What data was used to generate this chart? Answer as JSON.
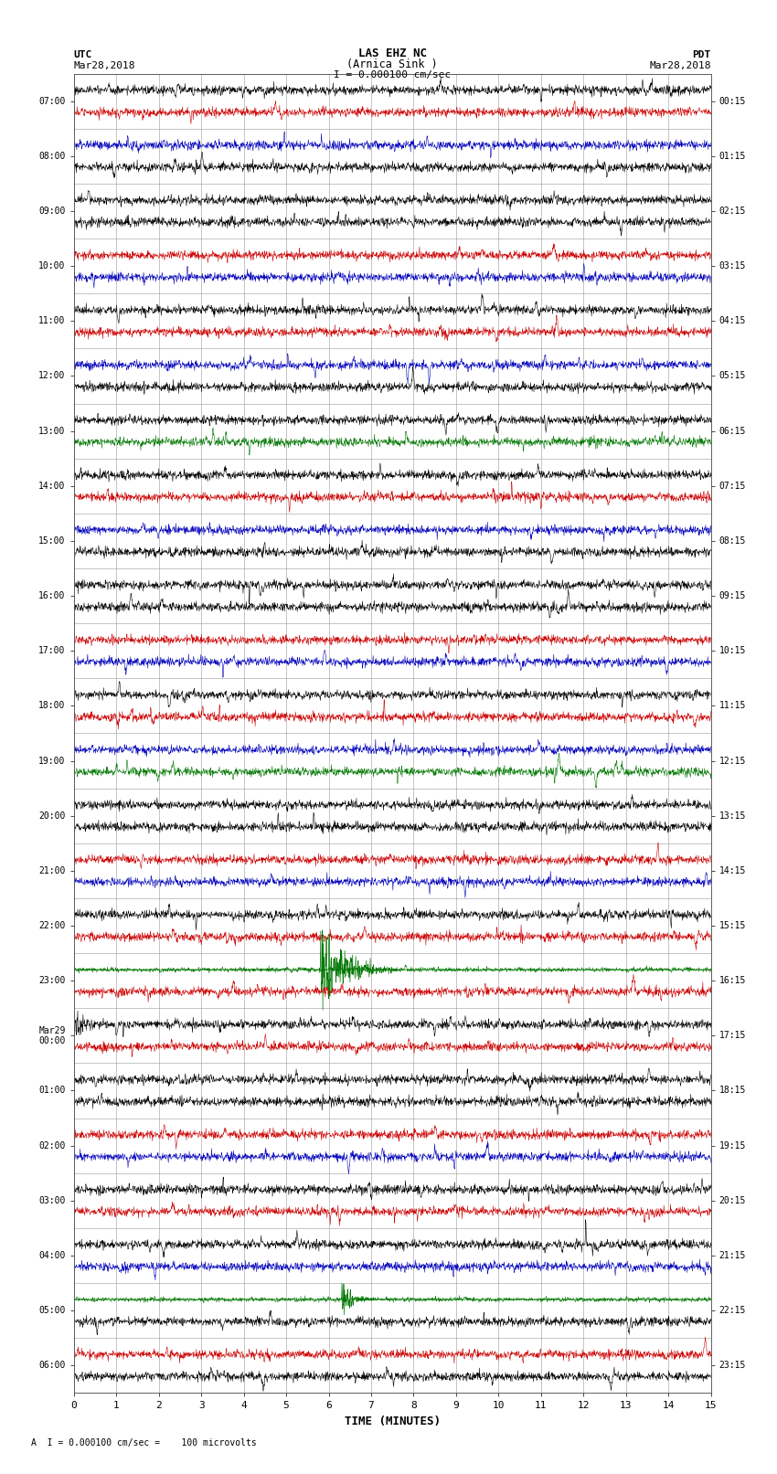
{
  "title_line1": "LAS EHZ NC",
  "title_line2": "(Arnica Sink )",
  "scale_text": "I = 0.000100 cm/sec",
  "left_label_top": "UTC",
  "left_label_date": "Mar28,2018",
  "right_label_top": "PDT",
  "right_label_date": "Mar28,2018",
  "footer_text": "A  I = 0.000100 cm/sec =    100 microvolts",
  "xlabel": "TIME (MINUTES)",
  "utc_labels": [
    "07:00",
    "08:00",
    "09:00",
    "10:00",
    "11:00",
    "12:00",
    "13:00",
    "14:00",
    "15:00",
    "16:00",
    "17:00",
    "18:00",
    "19:00",
    "20:00",
    "21:00",
    "22:00",
    "23:00",
    "Mar29\n00:00",
    "01:00",
    "02:00",
    "03:00",
    "04:00",
    "05:00",
    "06:00"
  ],
  "pdt_labels": [
    "00:15",
    "01:15",
    "02:15",
    "03:15",
    "04:15",
    "05:15",
    "06:15",
    "07:15",
    "08:15",
    "09:15",
    "10:15",
    "11:15",
    "12:15",
    "13:15",
    "14:15",
    "15:15",
    "16:15",
    "17:15",
    "18:15",
    "19:15",
    "20:15",
    "21:15",
    "22:15",
    "23:15"
  ],
  "n_rows": 24,
  "minutes_per_row": 15,
  "bg_color": "#ffffff",
  "grid_color": "#999999",
  "noise_seed": 12345,
  "row_colors": [
    [
      "#000000",
      "#cc0000"
    ],
    [
      "#0000bb",
      "#000000"
    ],
    [
      "#000000",
      "#000000"
    ],
    [
      "#cc0000",
      "#0000bb"
    ],
    [
      "#000000",
      "#cc0000"
    ],
    [
      "#0000bb",
      "#000000"
    ],
    [
      "#000000",
      "#007700"
    ],
    [
      "#000000",
      "#cc0000"
    ],
    [
      "#0000bb",
      "#000000"
    ],
    [
      "#000000",
      "#000000"
    ],
    [
      "#cc0000",
      "#0000bb"
    ],
    [
      "#000000",
      "#cc0000"
    ],
    [
      "#0000bb",
      "#007700"
    ],
    [
      "#000000",
      "#000000"
    ],
    [
      "#cc0000",
      "#0000bb"
    ],
    [
      "#000000",
      "#cc0000"
    ],
    [
      "#0000bb",
      "#cc0000"
    ],
    [
      "#000000",
      "#cc0000"
    ],
    [
      "#000000",
      "#000000"
    ],
    [
      "#cc0000",
      "#0000bb"
    ],
    [
      "#000000",
      "#cc0000"
    ],
    [
      "#000000",
      "#0000bb"
    ],
    [
      "#007700",
      "#000000"
    ],
    [
      "#cc0000",
      "#000000"
    ]
  ],
  "base_amp": 0.04,
  "spike_amp": 0.12,
  "green_event_row": 16,
  "green_event_minute": 5.8,
  "green_event_duration": 1.8,
  "green_event_amp": 0.42,
  "green_event2_row": 22,
  "green_event2_minute": 6.3,
  "green_event2_duration": 0.8,
  "green_event2_amp": 0.18
}
